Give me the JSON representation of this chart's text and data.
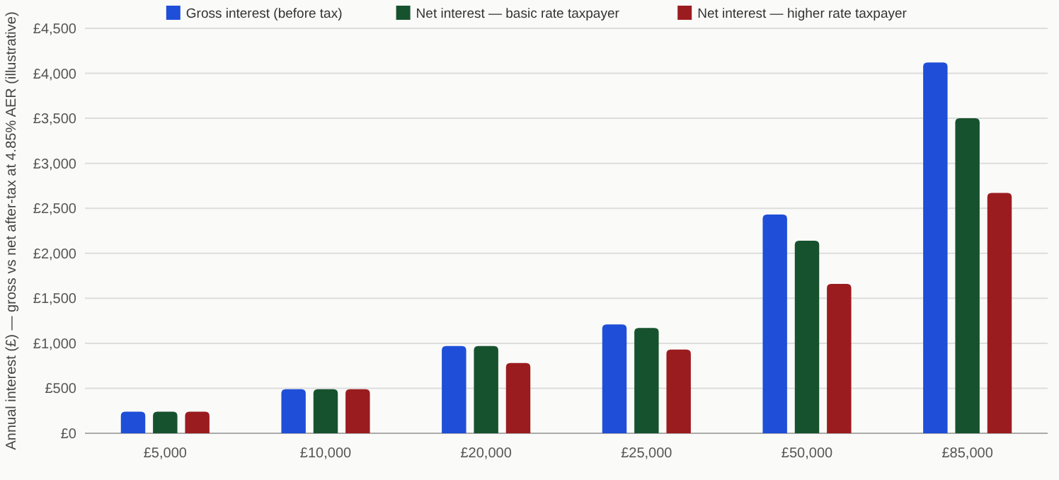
{
  "chart_data": {
    "type": "bar",
    "ylabel": "Annual interest (£) — gross vs net after-tax at 4.85% AER (illustrative)",
    "categories": [
      "£5,000",
      "£10,000",
      "£20,000",
      "£25,000",
      "£50,000",
      "£85,000"
    ],
    "series": [
      {
        "name": "Gross interest (before tax)",
        "color": "#1f4fd8",
        "values": [
          240,
          490,
          970,
          1210,
          2430,
          4120
        ]
      },
      {
        "name": "Net interest — basic rate taxpayer",
        "color": "#17522e",
        "values": [
          240,
          490,
          970,
          1170,
          2140,
          3500
        ]
      },
      {
        "name": "Net interest — higher rate taxpayer",
        "color": "#9b1c1f",
        "values": [
          240,
          490,
          780,
          930,
          1660,
          2670
        ]
      }
    ],
    "ylim": [
      0,
      4500
    ],
    "yticks": [
      {
        "value": 0,
        "label": "£0"
      },
      {
        "value": 500,
        "label": "£500"
      },
      {
        "value": 1000,
        "label": "£1,000"
      },
      {
        "value": 1500,
        "label": "£1,500"
      },
      {
        "value": 2000,
        "label": "£2,000"
      },
      {
        "value": 2500,
        "label": "£2,500"
      },
      {
        "value": 3000,
        "label": "£3,000"
      },
      {
        "value": 3500,
        "label": "£3,500"
      },
      {
        "value": 4000,
        "label": "£4,000"
      },
      {
        "value": 4500,
        "label": "£4,500"
      }
    ],
    "grid": "y",
    "legend": "top"
  }
}
